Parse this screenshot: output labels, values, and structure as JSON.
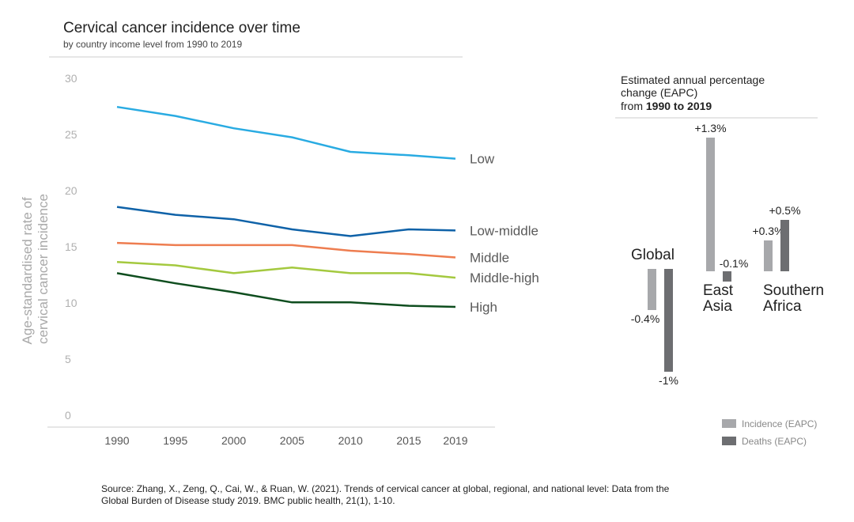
{
  "chart_data": [
    {
      "type": "line",
      "title": "Cervical cancer incidence over time",
      "subtitle": "by country income level from 1990 to 2019",
      "ylabel": [
        "Age-standardised rate of",
        "cervical cancer incidence"
      ],
      "xlabel": "",
      "x": [
        1990,
        1995,
        2000,
        2005,
        2010,
        2015,
        2019
      ],
      "x_labels": [
        "1990",
        "1995",
        "2000",
        "2005",
        "2010",
        "2015",
        "2019"
      ],
      "y_ticks": [
        0,
        5,
        10,
        15,
        20,
        25,
        30
      ],
      "ylim": [
        0,
        30
      ],
      "grid": false,
      "series": [
        {
          "name": "Low",
          "color": "#29abe2",
          "values": [
            27.8,
            27.0,
            25.9,
            25.1,
            23.8,
            23.5,
            23.2
          ]
        },
        {
          "name": "Low-middle",
          "color": "#0f62a8",
          "values": [
            18.9,
            18.2,
            17.8,
            16.9,
            16.3,
            16.9,
            16.8
          ]
        },
        {
          "name": "Middle",
          "color": "#ee7d50",
          "values": [
            15.7,
            15.5,
            15.5,
            15.5,
            15.0,
            14.7,
            14.4
          ]
        },
        {
          "name": "Middle-high",
          "color": "#a4c93f",
          "values": [
            14.0,
            13.7,
            13.0,
            13.5,
            13.0,
            13.0,
            12.6
          ]
        },
        {
          "name": "High",
          "color": "#0e4d1e",
          "values": [
            13.0,
            12.1,
            11.3,
            10.4,
            10.4,
            10.1,
            10.0
          ]
        }
      ]
    },
    {
      "type": "bar",
      "title": [
        "Estimated annual percentage",
        "change (EAPC)"
      ],
      "title_prefix": "from ",
      "title_bold": "1990 to 2019",
      "categories": [
        {
          "name": "Global",
          "lines": [
            "Global"
          ]
        },
        {
          "name": "East Asia",
          "lines": [
            "East",
            "Asia"
          ]
        },
        {
          "name": "Southern Africa",
          "lines": [
            "Southern",
            "Africa"
          ]
        }
      ],
      "series": [
        {
          "name": "Incidence (EAPC)",
          "color": "#a7a8ab",
          "values": [
            -0.4,
            1.3,
            0.3
          ],
          "labels": [
            "-0.4%",
            "+1.3%",
            "+0.3%"
          ]
        },
        {
          "name": "Deaths (EAPC)",
          "color": "#6d6e71",
          "values": [
            -1.0,
            -0.1,
            0.5
          ],
          "labels": [
            "-1%",
            "-0.1%",
            "+0.5%"
          ]
        }
      ]
    }
  ],
  "source": [
    "Source: Zhang, X., Zeng, Q., Cai, W., & Ruan, W. (2021). Trends of cervical cancer at global, regional, and national level: Data from the",
    "Global Burden of Disease study 2019. BMC public health, 21(1), 1-10."
  ]
}
